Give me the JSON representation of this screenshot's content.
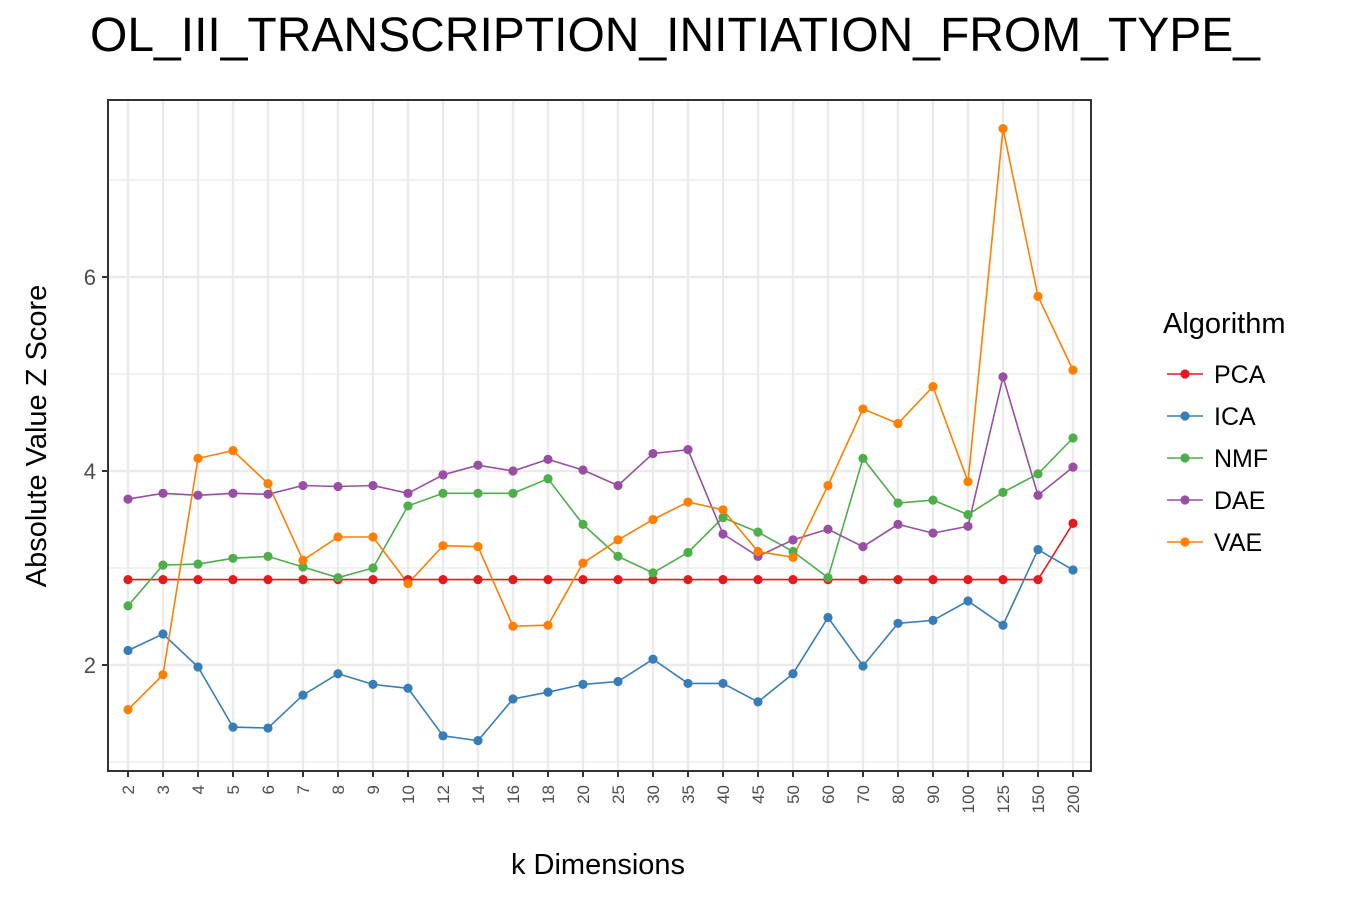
{
  "chart_data": {
    "type": "line",
    "title": "OL_III_TRANSCRIPTION_INITIATION_FROM_TYPE_",
    "xlabel": "k Dimensions",
    "ylabel": "Absolute Value Z Score",
    "categories": [
      "2",
      "3",
      "4",
      "5",
      "6",
      "7",
      "8",
      "9",
      "10",
      "12",
      "14",
      "16",
      "18",
      "20",
      "25",
      "30",
      "35",
      "40",
      "45",
      "50",
      "60",
      "70",
      "80",
      "90",
      "100",
      "125",
      "150",
      "200"
    ],
    "y_ticks": [
      "2",
      "4",
      "6"
    ],
    "ylim": [
      0.9,
      7.85
    ],
    "grid": true,
    "legend": {
      "title": "Algorithm",
      "placement": "right"
    },
    "series": [
      {
        "name": "PCA",
        "color": "#E41A1C",
        "values": [
          2.88,
          2.88,
          2.88,
          2.88,
          2.88,
          2.88,
          2.88,
          2.88,
          2.88,
          2.88,
          2.88,
          2.88,
          2.88,
          2.88,
          2.88,
          2.88,
          2.88,
          2.88,
          2.88,
          2.88,
          2.88,
          2.88,
          2.88,
          2.88,
          2.88,
          2.88,
          2.88,
          3.46
        ]
      },
      {
        "name": "ICA",
        "color": "#377EB8",
        "values": [
          2.15,
          2.32,
          1.98,
          1.36,
          1.35,
          1.69,
          1.91,
          1.8,
          1.76,
          1.27,
          1.22,
          1.65,
          1.72,
          1.8,
          1.83,
          2.06,
          1.81,
          1.81,
          1.62,
          1.91,
          2.49,
          1.99,
          2.43,
          2.46,
          2.66,
          2.41,
          3.19,
          2.98
        ]
      },
      {
        "name": "NMF",
        "color": "#4DAF4A",
        "values": [
          2.61,
          3.03,
          3.04,
          3.1,
          3.12,
          3.01,
          2.9,
          3.0,
          3.64,
          3.77,
          3.77,
          3.77,
          3.92,
          3.45,
          3.12,
          2.95,
          3.16,
          3.52,
          3.37,
          3.17,
          2.9,
          4.13,
          3.67,
          3.7,
          3.55,
          3.78,
          3.97,
          4.34
        ]
      },
      {
        "name": "DAE",
        "color": "#984EA3",
        "values": [
          3.71,
          3.77,
          3.75,
          3.77,
          3.76,
          3.85,
          3.84,
          3.85,
          3.77,
          3.96,
          4.06,
          4.0,
          4.12,
          4.01,
          3.85,
          4.18,
          4.22,
          3.35,
          3.12,
          3.29,
          3.4,
          3.22,
          3.45,
          3.36,
          3.43,
          4.97,
          3.75,
          4.04
        ]
      },
      {
        "name": "VAE",
        "color": "#FF7F00",
        "values": [
          1.54,
          1.9,
          4.13,
          4.21,
          3.87,
          3.08,
          3.32,
          3.32,
          2.84,
          3.23,
          3.22,
          2.4,
          2.41,
          3.05,
          3.29,
          3.5,
          3.68,
          3.6,
          3.17,
          3.11,
          3.85,
          4.64,
          4.49,
          4.87,
          3.89,
          7.53,
          5.8,
          5.04
        ]
      }
    ]
  }
}
